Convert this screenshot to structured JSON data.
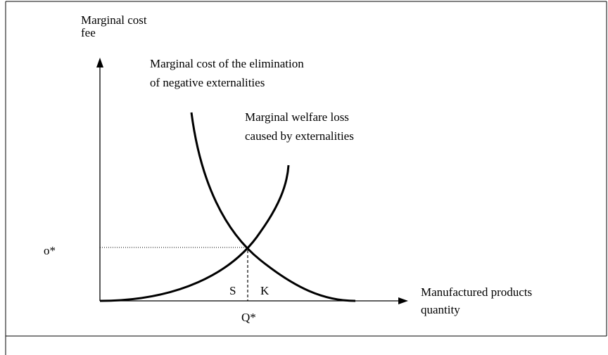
{
  "y_axis": {
    "label_line1": "Marginal cost",
    "label_line2": "fee"
  },
  "x_axis": {
    "label_line1": "Manufactured products",
    "label_line2": "quantity"
  },
  "curves": [
    {
      "label_line1": "Marginal cost of the elimination",
      "label_line2": "of negative externalities"
    },
    {
      "label_line1": "Marginal welfare loss",
      "label_line2": "caused by externalities"
    }
  ],
  "equilibrium": {
    "price_label": "o*",
    "quantity_label": "Q*",
    "left_area": "S",
    "right_area": "K"
  }
}
